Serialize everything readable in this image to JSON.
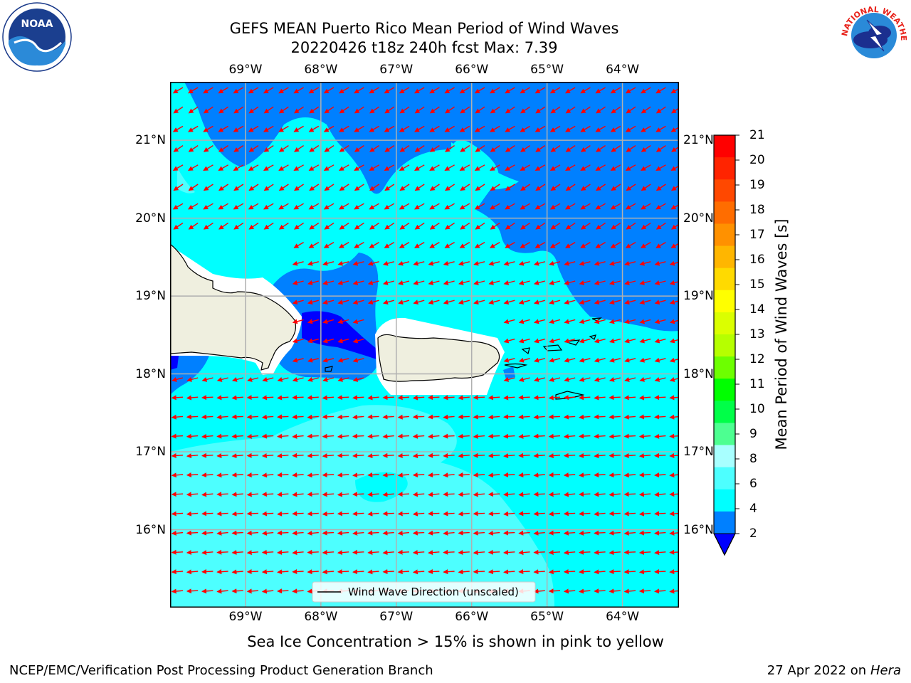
{
  "header": {
    "title_line1": "GEFS MEAN Puerto Rico Mean Period of Wind Waves",
    "title_line2": "20220426 t18z 240h fcst   Max: 7.39"
  },
  "map": {
    "lon_labels": [
      "69°W",
      "68°W",
      "67°W",
      "66°W",
      "65°W",
      "64°W"
    ],
    "lat_labels": [
      "21°N",
      "20°N",
      "19°N",
      "18°N",
      "17°N",
      "16°N"
    ],
    "lon_range": [
      -70.0,
      -63.25
    ],
    "lat_range": [
      15.0,
      21.75
    ],
    "legend_label": "Wind Wave Direction (unscaled)",
    "colors": {
      "land": "#efefdf",
      "arrow": "#ff0000",
      "grid": "#b0b0b0",
      "period_2_4": "#0080ff",
      "period_4_6": "#00ffff",
      "period_6_8": "#4dffff",
      "period_below_2": "#0000ff"
    }
  },
  "colorbar": {
    "title": "Mean Period of Wind Waves [s]",
    "labels": [
      "21",
      "20",
      "19",
      "18",
      "17",
      "16",
      "15",
      "14",
      "13",
      "12",
      "11",
      "10",
      "9",
      "8",
      "6",
      "4",
      "2"
    ],
    "colors": [
      "#ff0000",
      "#ff2400",
      "#ff4800",
      "#ff6d00",
      "#ff9100",
      "#ffb600",
      "#ffda00",
      "#ffff00",
      "#dbff00",
      "#b6ff00",
      "#6dff00",
      "#00ff00",
      "#00ff48",
      "#4dff91",
      "#a8ffff",
      "#4dffff",
      "#00ffff",
      "#0080ff"
    ],
    "extend_color": "#0000ff"
  },
  "notes": {
    "sea_ice": "Sea Ice Concentration > 15% is shown in pink to yellow"
  },
  "footer": {
    "left": "NCEP/EMC/Verification Post Processing Product Generation Branch",
    "right_date": "27 Apr 2022 on ",
    "right_host": "Hera"
  },
  "logos": {
    "noaa_text": "NOAA",
    "nws_text": "NATIONAL WEATHER SERVICE"
  }
}
